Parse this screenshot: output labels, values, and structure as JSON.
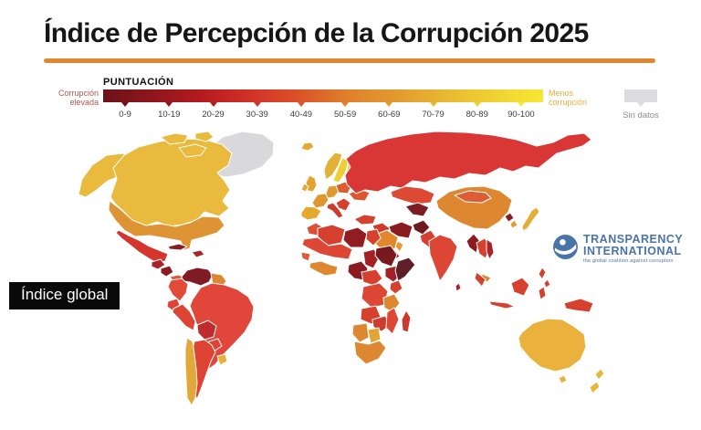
{
  "title": "Índice de Percepción de la Corrupción 2025",
  "accent_color": "#E1862F",
  "legend": {
    "label": "PUNTUACIÓN",
    "left_label_line1": "Corrupción",
    "left_label_line2": "elevada",
    "left_label_color": "#B0584F",
    "right_label_line1": "Menos",
    "right_label_line2": "corrupción",
    "right_label_color": "#EDAD3C",
    "ranges": [
      "0-9",
      "10-19",
      "20-29",
      "30-39",
      "40-49",
      "50-59",
      "60-69",
      "70-79",
      "80-89",
      "90-100"
    ],
    "range_colors": [
      "#6B1219",
      "#8E161C",
      "#B41A1E",
      "#D23127",
      "#DC5229",
      "#E0802C",
      "#E29A2E",
      "#E8B832",
      "#EFD233",
      "#F7E733"
    ],
    "no_data_label": "Sin datos",
    "no_data_color": "#DCDCDE"
  },
  "map_overlay_label": "Índice global",
  "logo": {
    "line1": "TRANSPARENCY",
    "line2": "INTERNATIONAL",
    "tagline": "the global coalition against corruption",
    "color": "#4A74A9"
  },
  "map": {
    "region_colors": {
      "greenland": "#D9D9DC",
      "alaska": "#EABA3E",
      "canada": "#EABA3E",
      "usa": "#DE9434",
      "mexico": "#D4352C",
      "guatemala": "#A8232A",
      "nicaragua": "#8C1A21",
      "panama_cr": "#E05836",
      "cuba": "#8C1A21",
      "hispaniola": "#A8232A",
      "venezuela": "#7F1B22",
      "colombia": "#E14B38",
      "guyanas": "#DD8830",
      "ecuador": "#DD4434",
      "peru": "#DD4434",
      "brazil": "#E0463A",
      "bolivia": "#BF2B2F",
      "paraguay": "#DD4434",
      "uruguay": "#E6B13A",
      "argentina": "#DD4434",
      "chile": "#E2A838",
      "iceland": "#E2A832",
      "norway": "#E3B137",
      "sweden": "#EECD35",
      "finland": "#F0D334",
      "uk": "#E2A32F",
      "ireland": "#E2A82F",
      "france": "#E0962F",
      "iberia": "#E5A930",
      "germany": "#DD9A31",
      "central_europe": "#DD5C30",
      "italy": "#CC3A2D",
      "balkans": "#D6402E",
      "ukraine": "#DD5630",
      "russia": "#D93636",
      "kazakhstan": "#DD4A33",
      "central_asia": "#7C1C24",
      "turkey": "#D6402E",
      "levant": "#CF3A2E",
      "saudi": "#E0872B",
      "yemen": "#77191F",
      "oman": "#E39A2E",
      "iran": "#8C1A21",
      "afghanistan": "#701A20",
      "pakistan": "#D6402E",
      "india": "#DD4534",
      "srilanka": "#A8232A",
      "china": "#DD8830",
      "mongolia": "#DD5E36",
      "nkorea": "#8C1A21",
      "skorea": "#E39A2E",
      "japan": "#E3AD36",
      "myanmar": "#8C1A21",
      "indochina": "#D6402E",
      "vietnam": "#A8232A",
      "philippines": "#D6402E",
      "malaysia": "#DD8830",
      "indonesia": "#D6402E",
      "png": "#D6402E",
      "australia": "#EAB23C",
      "new_zealand": "#E6B83A",
      "morocco": "#DD4F35",
      "algeria": "#D6402E",
      "libya": "#8F1D22",
      "egypt": "#D6402E",
      "sahel": "#DD4836",
      "west_africa": "#E05836",
      "guinea_gulf": "#DD8830",
      "nigeria": "#8C1A21",
      "chad": "#A32126",
      "sudan": "#77191F",
      "ethiopia": "#A32126",
      "somalia": "#5F1F28",
      "central_africa": "#D6402E",
      "drc": "#DD4836",
      "kenya": "#D6402E",
      "tanzania": "#DD8830",
      "angola": "#D6402E",
      "zambia": "#CF3A2E",
      "mozambique": "#DD4836",
      "namibia": "#DD8830",
      "botswana": "#E2A534",
      "south_africa": "#DD8830",
      "madagascar": "#CC3A2D"
    }
  }
}
